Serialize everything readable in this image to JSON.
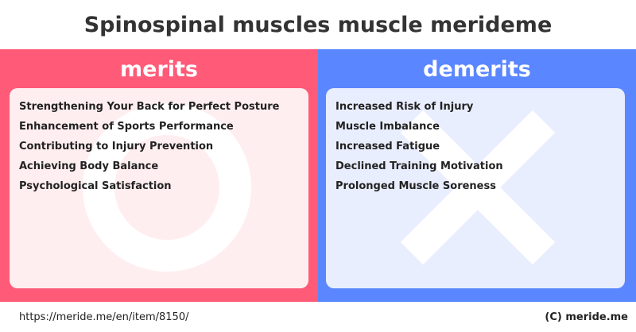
{
  "title": "Spinospinal muscles muscle merideme",
  "merits": {
    "heading": "merits",
    "items": [
      "Strengthening Your Back for Perfect Posture",
      "Enhancement of Sports Performance",
      "Contributing to Injury Prevention",
      "Achieving Body Balance",
      "Psychological Satisfaction"
    ],
    "color": "#ff5a78",
    "card_color": "#ffeef0",
    "symbol": "circle-icon"
  },
  "demerits": {
    "heading": "demerits",
    "items": [
      "Increased Risk of Injury",
      "Muscle Imbalance",
      "Increased Fatigue",
      "Declined Training Motivation",
      "Prolonged Muscle Soreness"
    ],
    "color": "#5a87ff",
    "card_color": "#e9eeff",
    "symbol": "cross-icon"
  },
  "footer": {
    "url": "https://meride.me/en/item/8150/",
    "copyright": "(C) meride.me"
  }
}
